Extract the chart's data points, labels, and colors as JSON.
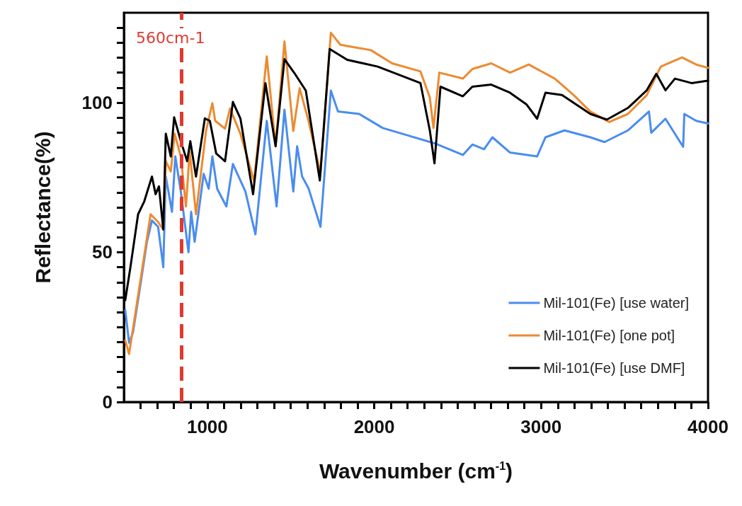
{
  "chart_data": {
    "type": "line",
    "xlabel": "Wavenumber (cm$^{-1}$)",
    "ylabel": "Reflectance(%)",
    "xlim": [
      500,
      4000
    ],
    "ylim": [
      0,
      130
    ],
    "xticks": [
      {
        "value": 600,
        "label": null
      },
      {
        "value": 700,
        "label": null
      },
      {
        "value": 800,
        "label": null
      },
      {
        "value": 900,
        "label": null
      },
      1000,
      {
        "value": 1100,
        "label": null
      },
      {
        "value": 1200,
        "label": null
      },
      {
        "value": 1300,
        "label": null
      },
      {
        "value": 1400,
        "label": null
      },
      {
        "value": 1500,
        "label": null
      },
      {
        "value": 1600,
        "label": null
      },
      {
        "value": 1700,
        "label": null
      },
      {
        "value": 1800,
        "label": null
      },
      {
        "value": 1900,
        "label": null
      },
      2000,
      {
        "value": 2100,
        "label": null
      },
      {
        "value": 2200,
        "label": null
      },
      {
        "value": 2300,
        "label": null
      },
      {
        "value": 2400,
        "label": null
      },
      {
        "value": 2500,
        "label": null
      },
      {
        "value": 2600,
        "label": null
      },
      {
        "value": 2700,
        "label": null
      },
      {
        "value": 2800,
        "label": null
      },
      {
        "value": 2900,
        "label": null
      },
      3000,
      {
        "value": 3100,
        "label": null
      },
      {
        "value": 3200,
        "label": null
      },
      {
        "value": 3300,
        "label": null
      },
      {
        "value": 3400,
        "label": null
      },
      {
        "value": 3500,
        "label": null
      },
      {
        "value": 3600,
        "label": null
      },
      {
        "value": 3700,
        "label": null
      },
      {
        "value": 3800,
        "label": null
      },
      {
        "value": 3900,
        "label": null
      },
      4000
    ],
    "yticks": [
      0,
      {
        "value": 5,
        "label": null
      },
      {
        "value": 10,
        "label": null
      },
      {
        "value": 15,
        "label": null
      },
      {
        "value": 20,
        "label": null
      },
      {
        "value": 25,
        "label": null
      },
      {
        "value": 30,
        "label": null
      },
      {
        "value": 35,
        "label": null
      },
      {
        "value": 40,
        "label": null
      },
      {
        "value": 45,
        "label": null
      },
      50,
      {
        "value": 55,
        "label": null
      },
      {
        "value": 60,
        "label": null
      },
      {
        "value": 65,
        "label": null
      },
      {
        "value": 70,
        "label": null
      },
      {
        "value": 75,
        "label": null
      },
      {
        "value": 80,
        "label": null
      },
      {
        "value": 85,
        "label": null
      },
      {
        "value": 90,
        "label": null
      },
      {
        "value": 95,
        "label": null
      },
      100,
      {
        "value": 105,
        "label": null
      },
      {
        "value": 110,
        "label": null
      },
      {
        "value": 115,
        "label": null
      },
      {
        "value": 120,
        "label": null
      },
      {
        "value": 125,
        "label": null
      }
    ],
    "grid": false,
    "legend": "bottom right",
    "marker": "none",
    "line_style": "solid",
    "ref_lines": [
      {
        "axis": "x",
        "value": 845,
        "label": "560cm-1",
        "color": "#e03a30",
        "line_style": "dashed"
      }
    ],
    "series": [
      {
        "name": "Mil-101(Fe) [use water]",
        "color": "#4a8cf0",
        "x": [
          508,
          531,
          554,
          592,
          638,
          668,
          705,
          736,
          751,
          788,
          808,
          841,
          887,
          903,
          924,
          978,
          1008,
          1030,
          1059,
          1114,
          1153,
          1228,
          1288,
          1356,
          1415,
          1462,
          1515,
          1538,
          1568,
          1606,
          1678,
          1740,
          1783,
          1910,
          2051,
          2191,
          2361,
          2531,
          2588,
          2658,
          2708,
          2814,
          2976,
          3026,
          3140,
          3295,
          3380,
          3520,
          3646,
          3660,
          3745,
          3851,
          3858,
          3929,
          4000
        ],
        "values": [
          30.7,
          19.8,
          23.1,
          36.6,
          53.5,
          60.6,
          58.5,
          45,
          75.3,
          63.5,
          82,
          70.3,
          50,
          63.5,
          53.5,
          76.2,
          71.2,
          82,
          71.2,
          65.3,
          79.5,
          70.3,
          56,
          93.9,
          65.3,
          97.6,
          70.3,
          85.4,
          75.3,
          71.4,
          58.5,
          104,
          97,
          96.2,
          91.5,
          89.2,
          86.4,
          82.5,
          86,
          84.4,
          88.4,
          83.3,
          82,
          88.4,
          90.7,
          88.4,
          86.8,
          90.7,
          97,
          89.9,
          94.6,
          85.2,
          96.2,
          93.9,
          93
        ]
      },
      {
        "name": "Mil-101(Fe) [one pot]",
        "color": "#ed8a30",
        "x": [
          508,
          531,
          660,
          705,
          736,
          751,
          781,
          804,
          841,
          872,
          894,
          932,
          992,
          1030,
          1047,
          1106,
          1136,
          1198,
          1280,
          1356,
          1409,
          1462,
          1515,
          1553,
          1606,
          1678,
          1740,
          1797,
          1980,
          2107,
          2277,
          2333,
          2355,
          2390,
          2531,
          2588,
          2701,
          2814,
          2926,
          3082,
          3195,
          3295,
          3408,
          3520,
          3633,
          3717,
          3844,
          3929,
          4000
        ],
        "values": [
          20.6,
          16,
          62.7,
          60.1,
          57.6,
          80.4,
          77,
          89.6,
          82,
          65.3,
          83.7,
          62.7,
          90.5,
          99.8,
          93.9,
          91.3,
          98,
          89.6,
          73.7,
          115.4,
          85.4,
          120.4,
          90.5,
          104.8,
          93.9,
          76.5,
          123.3,
          119.3,
          117.5,
          113.1,
          110.4,
          101.7,
          91.5,
          110,
          108,
          111.2,
          113.1,
          110,
          112.7,
          108,
          102.5,
          97,
          93.5,
          96.2,
          102.5,
          112,
          115.1,
          112.7,
          111.6
        ]
      },
      {
        "name": "Mil-101(Fe) [use DMF]",
        "color": "#000000",
        "x": [
          508,
          539,
          585,
          622,
          668,
          690,
          710,
          736,
          751,
          781,
          801,
          841,
          879,
          898,
          932,
          985,
          1015,
          1053,
          1106,
          1153,
          1198,
          1274,
          1348,
          1409,
          1462,
          1521,
          1590,
          1674,
          1733,
          1838,
          2021,
          2134,
          2277,
          2333,
          2361,
          2397,
          2531,
          2588,
          2701,
          2813,
          2912,
          2976,
          3026,
          3125,
          3295,
          3394,
          3520,
          3633,
          3690,
          3745,
          3802,
          3901,
          4000
        ],
        "values": [
          34,
          45,
          62.7,
          67,
          75.3,
          69.4,
          72,
          57.6,
          89.6,
          82,
          95.1,
          87.1,
          80.4,
          87.1,
          75.3,
          94.7,
          93.9,
          83,
          80.4,
          100.2,
          94.7,
          69.4,
          106.5,
          85.4,
          114.5,
          109.9,
          104,
          74,
          117.9,
          114.3,
          112,
          109.6,
          106.5,
          90.7,
          79.7,
          105.3,
          102.1,
          105.3,
          106,
          103.3,
          99.4,
          94.6,
          103.3,
          102.5,
          96.2,
          94.3,
          98.2,
          104.1,
          109.6,
          104.1,
          108,
          106.5,
          107.3
        ]
      }
    ]
  }
}
